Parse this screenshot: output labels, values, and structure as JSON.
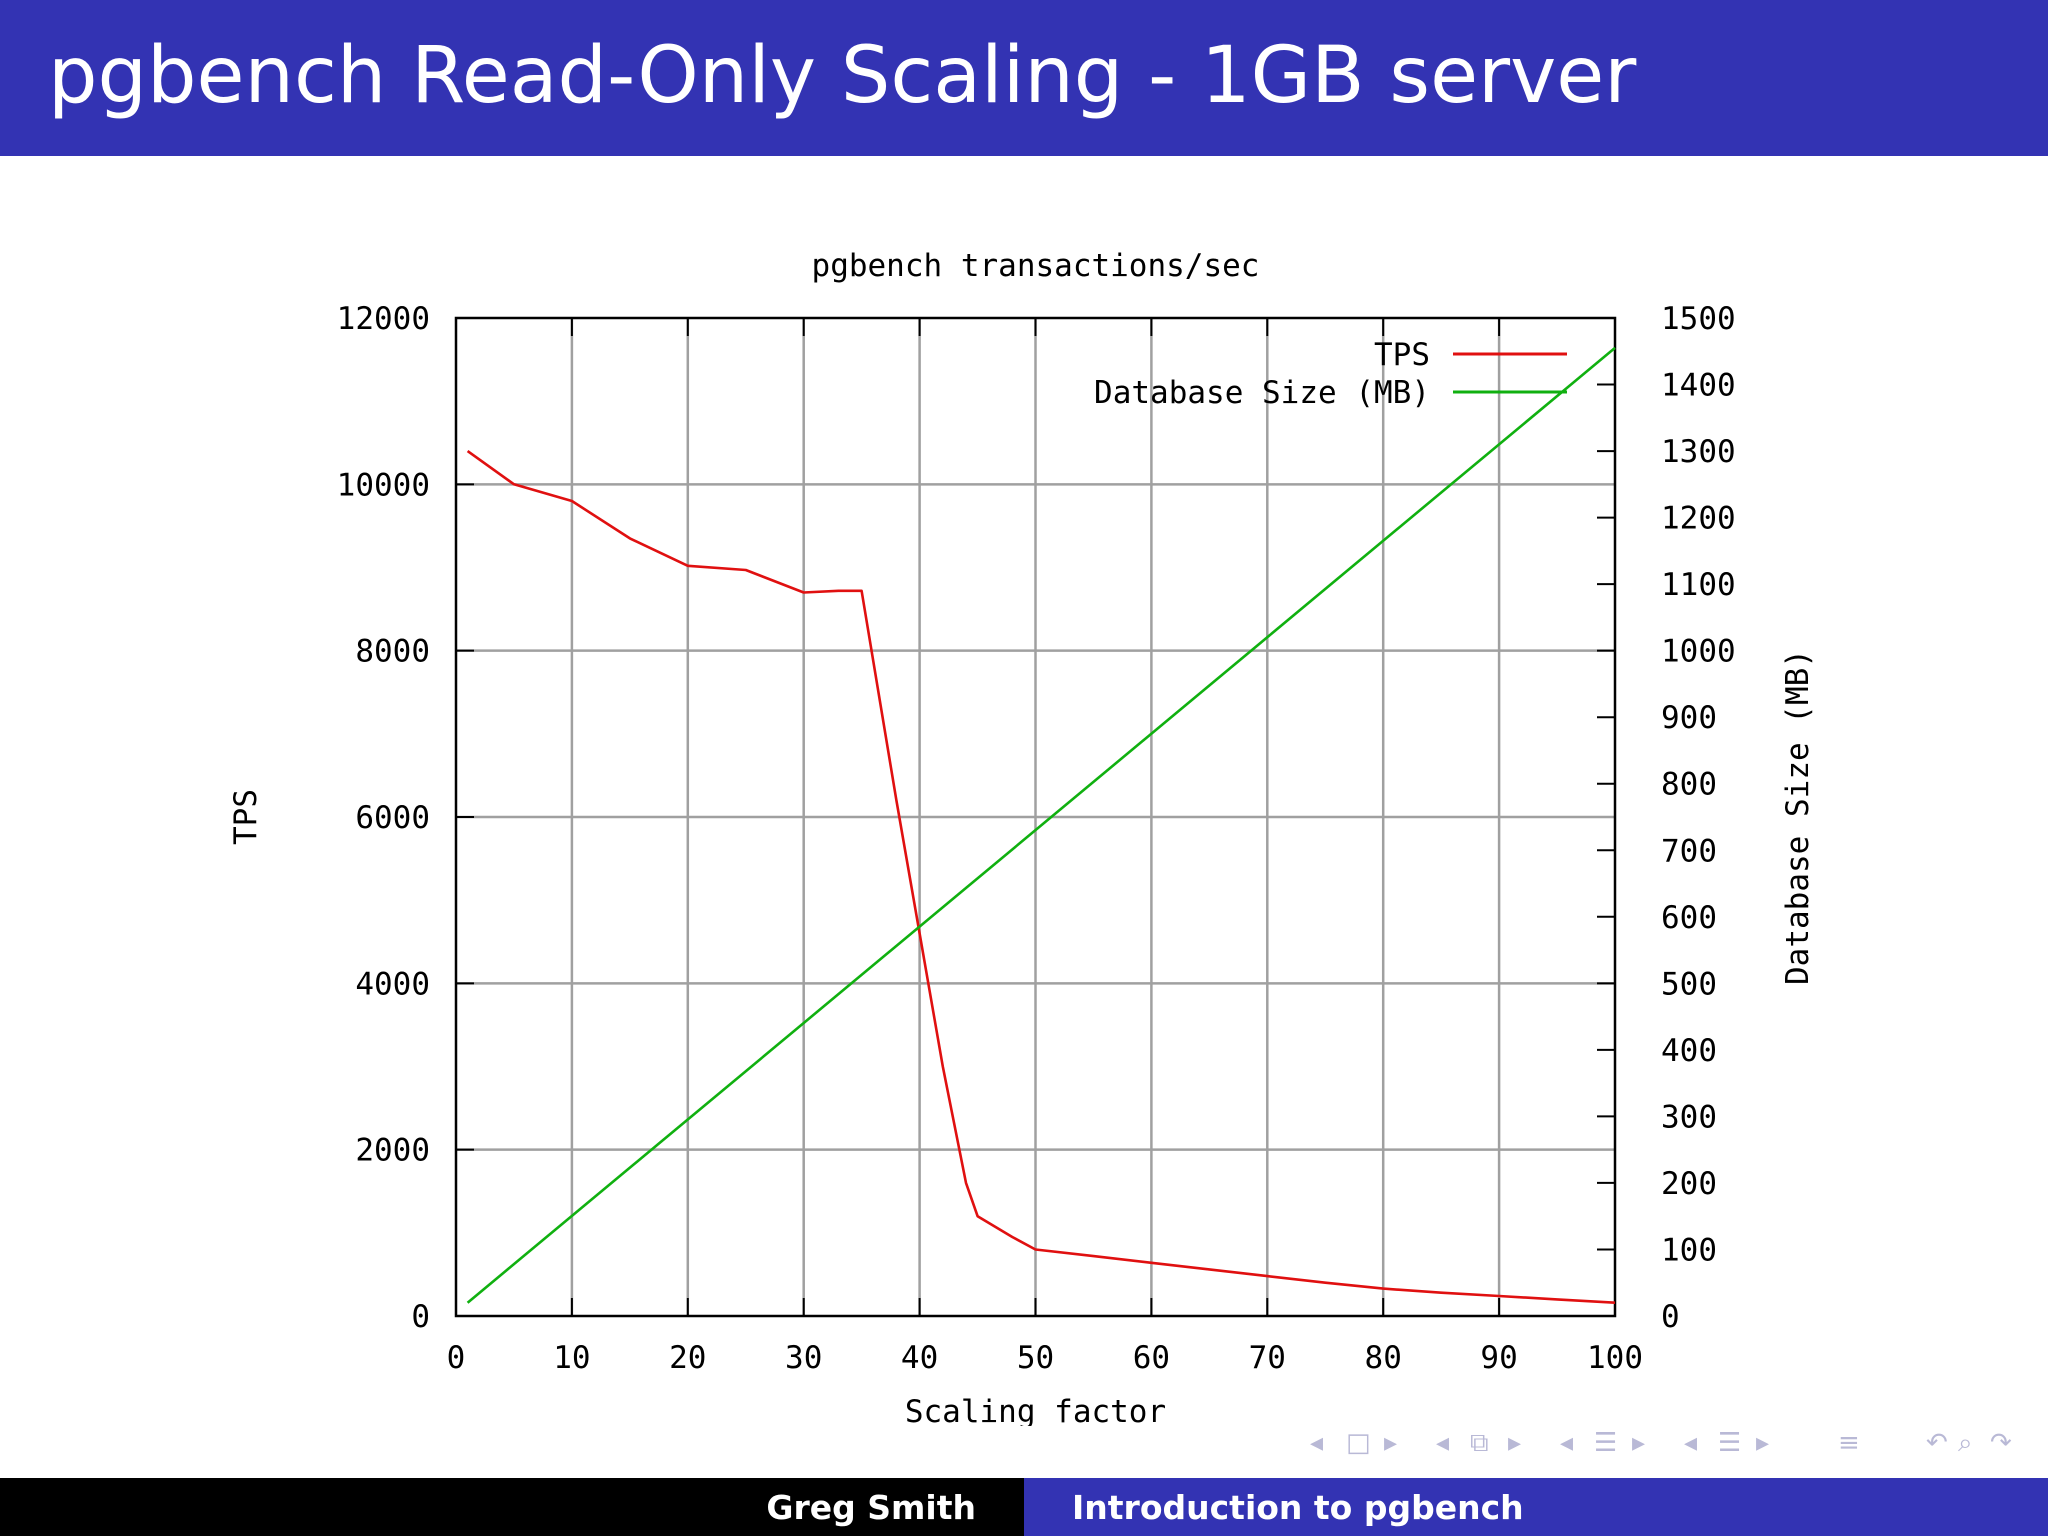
{
  "slide": {
    "title": "pgbench Read-Only Scaling - 1GB server"
  },
  "footer": {
    "author": "Greg Smith",
    "talk_title": "Introduction to pgbench"
  },
  "navigation": {
    "icons": [
      "nav-left-icon",
      "nav-frame-icon",
      "nav-right-icon",
      "nav-left-icon",
      "nav-subsection-icon",
      "nav-right-icon",
      "nav-left-icon",
      "nav-section-icon",
      "nav-right-icon",
      "nav-left-icon",
      "nav-section-icon",
      "nav-right-icon",
      "nav-align-icon",
      "nav-undo-icon",
      "nav-search-icon",
      "nav-redo-icon"
    ]
  },
  "colors": {
    "title_bar": "#3333b3",
    "tps": "#e01010",
    "db_size": "#10b010",
    "grid": "#a0a0a0"
  },
  "chart_data": {
    "type": "line",
    "title": "pgbench transactions/sec",
    "xlabel": "Scaling factor",
    "ylabel": "TPS",
    "y2label": "Database Size (MB)",
    "xlim": [
      0,
      100
    ],
    "ylim": [
      0,
      12000
    ],
    "y2lim": [
      0,
      1500
    ],
    "x_ticks": [
      0,
      10,
      20,
      30,
      40,
      50,
      60,
      70,
      80,
      90,
      100
    ],
    "y_ticks": [
      0,
      2000,
      4000,
      6000,
      8000,
      10000,
      12000
    ],
    "y2_ticks": [
      0,
      100,
      200,
      300,
      400,
      500,
      600,
      700,
      800,
      900,
      1000,
      1100,
      1200,
      1300,
      1400,
      1500
    ],
    "grid": true,
    "legend_position": "top-right",
    "series": [
      {
        "name": "TPS",
        "axis": "left",
        "color": "#e01010",
        "x": [
          1,
          5,
          10,
          15,
          20,
          25,
          30,
          33,
          35,
          38,
          40,
          42,
          44,
          45,
          48,
          50,
          55,
          60,
          65,
          70,
          75,
          80,
          85,
          90,
          95,
          100
        ],
        "values": [
          10400,
          10000,
          9800,
          9350,
          9020,
          8970,
          8700,
          8720,
          8720,
          6200,
          4600,
          3000,
          1600,
          1200,
          950,
          800,
          720,
          640,
          560,
          480,
          400,
          330,
          280,
          240,
          200,
          160
        ]
      },
      {
        "name": "Database Size (MB)",
        "axis": "right",
        "color": "#10b010",
        "x": [
          1,
          100
        ],
        "values": [
          20,
          1455
        ]
      }
    ]
  }
}
